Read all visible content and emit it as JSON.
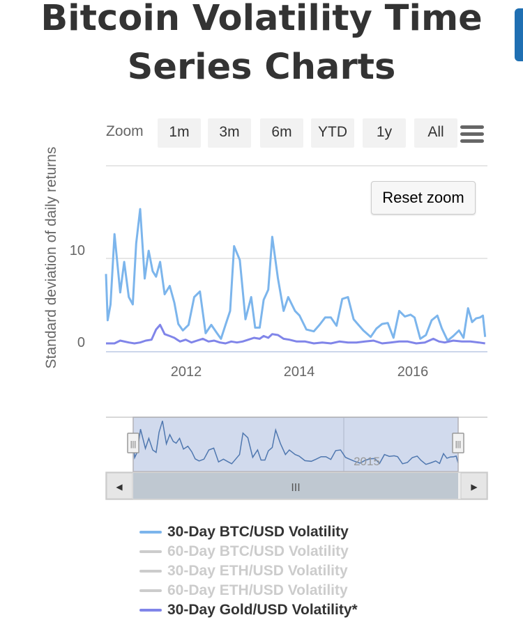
{
  "page": {
    "title_line1": "Bitcoin Volatility Time",
    "title_line2": "Series Charts"
  },
  "toolbar": {
    "zoom_label": "Zoom",
    "zoom_buttons": [
      "1m",
      "3m",
      "6m",
      "YTD",
      "1y",
      "All"
    ],
    "reset_zoom_label": "Reset zoom"
  },
  "chart_data": {
    "type": "line",
    "title": "",
    "xlabel": "",
    "ylabel": "Standard deviation of daily returns",
    "xlim": [
      2010.7,
      2017.4
    ],
    "ylim": [
      -1.5,
      19
    ],
    "x_ticks": [
      "2012",
      "2014",
      "2016"
    ],
    "y_ticks": [
      "0",
      "10"
    ],
    "grid": true,
    "legend_position": "bottom",
    "series": [
      {
        "name": "30-Day BTC/USD Volatility",
        "color": "#7cb5ec",
        "visible": true,
        "x": [
          2010.7,
          2010.73,
          2010.78,
          2010.85,
          2010.95,
          2011.02,
          2011.1,
          2011.17,
          2011.23,
          2011.3,
          2011.38,
          2011.45,
          2011.52,
          2011.58,
          2011.65,
          2011.73,
          2011.82,
          2011.9,
          2011.97,
          2012.05,
          2012.15,
          2012.25,
          2012.35,
          2012.45,
          2012.55,
          2012.65,
          2012.72,
          2012.8,
          2012.88,
          2012.95,
          2013.05,
          2013.15,
          2013.25,
          2013.32,
          2013.4,
          2013.47,
          2013.55,
          2013.62,
          2013.72,
          2013.82,
          2013.9,
          2014.02,
          2014.1,
          2014.22,
          2014.35,
          2014.45,
          2014.55,
          2014.65,
          2014.75,
          2014.85,
          2014.95,
          2015.05,
          2015.12,
          2015.22,
          2015.35,
          2015.45,
          2015.55,
          2015.65,
          2015.75,
          2015.85,
          2015.95,
          2016.05,
          2016.12,
          2016.22,
          2016.32,
          2016.42,
          2016.52,
          2016.6,
          2016.7,
          2016.8,
          2016.9,
          2016.98,
          2017.06,
          2017.13,
          2017.2,
          2017.27,
          2017.32,
          2017.36
        ],
        "values": [
          7.5,
          2.5,
          4.2,
          11.8,
          5.5,
          8.8,
          5.0,
          4.2,
          10.8,
          14.5,
          7.0,
          10.0,
          7.8,
          7.2,
          8.8,
          5.3,
          6.2,
          4.4,
          2.1,
          1.4,
          2.0,
          5.0,
          5.6,
          1.1,
          2.0,
          1.1,
          0.5,
          2.0,
          3.5,
          10.5,
          9.0,
          2.6,
          5.0,
          1.7,
          1.7,
          4.7,
          5.8,
          11.5,
          7.0,
          3.5,
          5.0,
          3.5,
          3.0,
          1.5,
          1.3,
          2.0,
          2.8,
          2.8,
          1.9,
          4.8,
          5.0,
          2.6,
          2.1,
          1.4,
          0.7,
          1.6,
          2.1,
          2.2,
          0.6,
          3.5,
          2.9,
          3.1,
          2.8,
          0.5,
          0.9,
          2.5,
          3.0,
          1.6,
          0.3,
          0.8,
          1.4,
          0.6,
          3.8,
          2.3,
          2.7,
          2.8,
          3.0,
          0.7
        ]
      },
      {
        "name": "60-Day BTC/USD Volatility",
        "color": "#cccccc",
        "visible": false
      },
      {
        "name": "30-Day ETH/USD Volatility",
        "color": "#cccccc",
        "visible": false
      },
      {
        "name": "60-Day ETH/USD Volatility",
        "color": "#cccccc",
        "visible": false
      },
      {
        "name": "30-Day Gold/USD Volatility*",
        "color": "#8085e9",
        "visible": true,
        "x": [
          2010.7,
          2010.85,
          2010.95,
          2011.1,
          2011.2,
          2011.3,
          2011.4,
          2011.5,
          2011.58,
          2011.65,
          2011.73,
          2011.82,
          2011.9,
          2012.0,
          2012.1,
          2012.2,
          2012.3,
          2012.4,
          2012.5,
          2012.6,
          2012.7,
          2012.8,
          2012.9,
          2013.0,
          2013.1,
          2013.2,
          2013.3,
          2013.4,
          2013.47,
          2013.55,
          2013.62,
          2013.72,
          2013.82,
          2013.92,
          2014.05,
          2014.2,
          2014.35,
          2014.5,
          2014.65,
          2014.8,
          2014.95,
          2015.1,
          2015.25,
          2015.4,
          2015.55,
          2015.7,
          2015.85,
          2016.0,
          2016.15,
          2016.3,
          2016.45,
          2016.55,
          2016.65,
          2016.8,
          2016.95,
          2017.1,
          2017.25,
          2017.36
        ],
        "values": [
          0.0,
          0.0,
          0.3,
          0.1,
          0.0,
          0.1,
          0.3,
          0.4,
          1.5,
          2.0,
          1.0,
          0.8,
          0.6,
          0.2,
          0.4,
          0.1,
          0.3,
          0.5,
          0.2,
          0.3,
          0.1,
          0.0,
          0.2,
          0.1,
          0.2,
          0.4,
          0.6,
          0.5,
          0.8,
          0.6,
          1.0,
          0.9,
          0.5,
          0.4,
          0.2,
          0.2,
          0.0,
          0.1,
          0.0,
          0.2,
          0.1,
          0.1,
          0.2,
          0.3,
          0.0,
          0.1,
          0.2,
          0.2,
          0.0,
          0.1,
          0.5,
          0.2,
          0.1,
          0.3,
          0.2,
          0.2,
          0.1,
          0.0
        ]
      }
    ]
  },
  "navigator": {
    "tick_label": "2015",
    "handle_glyph": "|||",
    "scroll_grip": "III",
    "left_arrow": "◀",
    "right_arrow": "▶",
    "selection": [
      2011.0,
      2017.2
    ]
  }
}
